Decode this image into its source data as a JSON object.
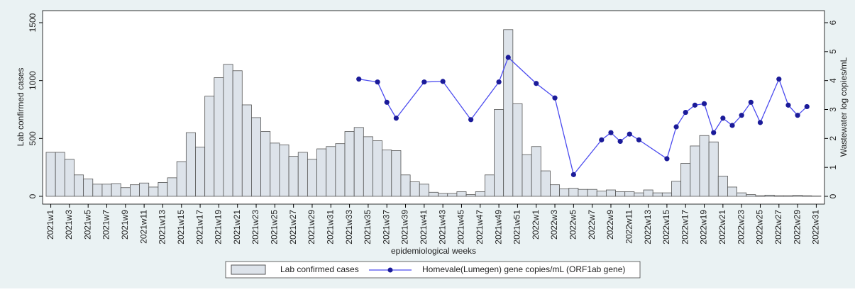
{
  "chart_data": {
    "type": "bar_line",
    "y_label": "Lab confirmed cases",
    "y2_label": "Wastewater log copies/mL",
    "x_label": "epidemiological weeks",
    "categories": [
      "2021w1",
      null,
      "2021w3",
      null,
      "2021w5",
      null,
      "2021w7",
      null,
      "2021w9",
      null,
      "2021w11",
      null,
      "2021w13",
      null,
      "2021w15",
      null,
      "2021w17",
      null,
      "2021w19",
      null,
      "2021w21",
      null,
      "2021w23",
      null,
      "2021w25",
      null,
      "2021w27",
      null,
      "2021w29",
      null,
      "2021w31",
      null,
      "2021w33",
      null,
      "2021w35",
      null,
      "2021w37",
      null,
      "2021w39",
      null,
      "2021w41",
      null,
      "2021w43",
      null,
      "2021w45",
      null,
      "2021w47",
      null,
      "2021w49",
      null,
      "2021w51",
      null,
      "2022w1",
      null,
      "2022w3",
      null,
      "2022w5",
      null,
      "2022w7",
      null,
      "2022w9",
      null,
      "2022w11",
      null,
      "2022w13",
      null,
      "2022w15",
      null,
      "2022w17",
      null,
      "2022w19",
      null,
      "2022w21",
      null,
      "2022w23",
      null,
      "2022w25",
      null,
      "2022w27",
      null,
      "2022w29",
      null,
      "2022w31"
    ],
    "series": [
      {
        "name": "Lab confirmed cases",
        "type": "bar",
        "color": "#dde3ea",
        "edge_color": "#555555",
        "values": [
          380,
          380,
          320,
          185,
          150,
          105,
          105,
          110,
          75,
          100,
          115,
          80,
          120,
          160,
          300,
          550,
          425,
          865,
          1025,
          1140,
          1085,
          790,
          680,
          560,
          460,
          445,
          345,
          380,
          320,
          410,
          430,
          455,
          560,
          595,
          515,
          480,
          400,
          395,
          185,
          125,
          105,
          35,
          25,
          25,
          40,
          15,
          40,
          185,
          750,
          1440,
          800,
          360,
          430,
          220,
          100,
          65,
          70,
          60,
          60,
          45,
          55,
          40,
          40,
          30,
          55,
          30,
          30,
          130,
          285,
          435,
          525,
          470,
          175,
          80,
          30,
          15,
          5,
          10,
          5,
          5,
          8,
          5,
          3
        ]
      },
      {
        "name": "Homevale(Lumegen) gene copies/mL (ORF1ab gene)",
        "type": "line",
        "axis": "y2",
        "color": "#4b4bef",
        "marker_color": "#1b1b99",
        "values": [
          null,
          null,
          null,
          null,
          null,
          null,
          null,
          null,
          null,
          null,
          null,
          null,
          null,
          null,
          null,
          null,
          null,
          null,
          null,
          null,
          null,
          null,
          null,
          null,
          null,
          null,
          null,
          null,
          null,
          null,
          null,
          null,
          null,
          4.05,
          null,
          3.95,
          3.25,
          2.7,
          null,
          null,
          3.95,
          null,
          3.97,
          null,
          null,
          2.65,
          null,
          null,
          3.95,
          4.8,
          null,
          null,
          3.9,
          null,
          3.4,
          null,
          0.75,
          null,
          null,
          1.95,
          2.2,
          1.9,
          2.15,
          1.95,
          null,
          null,
          1.3,
          2.4,
          2.9,
          3.15,
          3.2,
          2.2,
          2.7,
          2.45,
          2.8,
          3.25,
          2.55,
          null,
          4.05,
          3.15,
          2.8,
          3.1,
          null
        ]
      }
    ],
    "ylim": [
      0,
      1500
    ],
    "yticks": [
      0,
      500,
      1000,
      1500
    ],
    "y2lim": [
      0,
      6
    ],
    "y2ticks": [
      0,
      1,
      2,
      3,
      4,
      5,
      6
    ],
    "legend": "bottom"
  }
}
